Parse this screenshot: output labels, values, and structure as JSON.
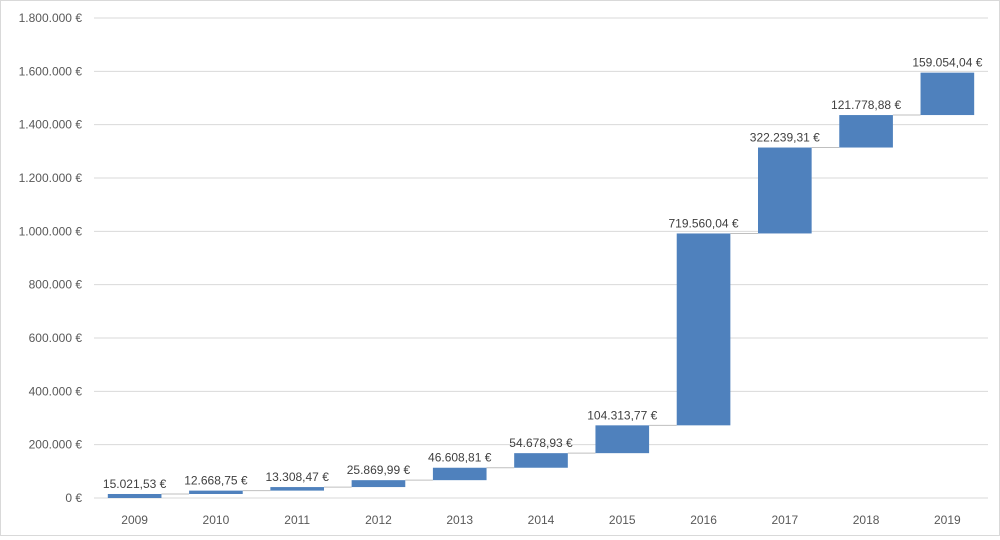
{
  "chart_data": {
    "type": "bar",
    "subtype": "waterfall",
    "title": "",
    "xlabel": "",
    "ylabel": "",
    "categories": [
      "2009",
      "2010",
      "2011",
      "2012",
      "2013",
      "2014",
      "2015",
      "2016",
      "2017",
      "2018",
      "2019"
    ],
    "values": [
      15021.53,
      12668.75,
      13308.47,
      25869.99,
      46608.81,
      54678.93,
      104313.77,
      719560.04,
      322239.31,
      121778.88,
      159054.04
    ],
    "data_labels": [
      "15.021,53 €",
      "12.668,75 €",
      "13.308,47 €",
      "25.869,99 €",
      "46.608,81 €",
      "54.678,93 €",
      "104.313,77 €",
      "719.560,04 €",
      "322.239,31 €",
      "121.778,88 €",
      "159.054,04 €"
    ],
    "ylim": [
      0,
      1800000
    ],
    "y_ticks": [
      0,
      200000,
      400000,
      600000,
      800000,
      1000000,
      1200000,
      1400000,
      1600000,
      1800000
    ],
    "y_tick_labels": [
      "0 €",
      "200.000 €",
      "400.000 €",
      "600.000 €",
      "800.000 €",
      "1.000.000 €",
      "1.200.000 €",
      "1.400.000 €",
      "1.600.000 €",
      "1.800.000 €"
    ],
    "grid": true,
    "legend": "none",
    "colors": {
      "bar": "#4f81bd",
      "grid": "#d9d9d9",
      "connector": "#bfbfbf"
    }
  }
}
